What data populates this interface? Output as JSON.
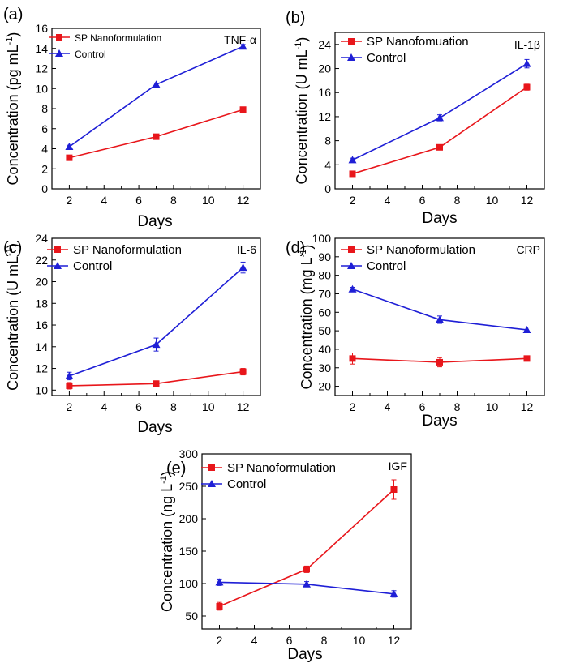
{
  "colors": {
    "sp": "#e8161b",
    "control": "#1f1fd6"
  },
  "chart_data": [
    {
      "panel_label": "(a)",
      "type": "line",
      "tag": "TNF-α",
      "ylabel_main": "Concentration (pg mL",
      "ylabel_sup": "-1",
      "ylabel_close": ")",
      "xlabel": "Days",
      "x": [
        2,
        7,
        12
      ],
      "xlim": [
        1,
        13
      ],
      "xticks": [
        "2",
        "4",
        "6",
        "8",
        "10",
        "12"
      ],
      "ylim": [
        0,
        16
      ],
      "yticks": [
        "0",
        "2",
        "4",
        "6",
        "8",
        "10",
        "12",
        "14",
        "16"
      ],
      "legend": [
        "SP Nanoformulation",
        "Control"
      ],
      "series": [
        {
          "name": "SP Nanoformulation",
          "values": [
            3.1,
            5.2,
            7.9
          ],
          "errors": [
            0.15,
            0.15,
            0.15
          ]
        },
        {
          "name": "Control",
          "values": [
            4.2,
            10.4,
            14.2
          ],
          "errors": [
            0.15,
            0.15,
            0.2
          ]
        }
      ]
    },
    {
      "panel_label": "(b)",
      "type": "line",
      "tag": "IL-1β",
      "ylabel_main": "Concentration (U mL",
      "ylabel_sup": "-1",
      "ylabel_close": ")",
      "xlabel": "Days",
      "x": [
        2,
        7,
        12
      ],
      "xlim": [
        1,
        13
      ],
      "xticks": [
        "2",
        "4",
        "6",
        "8",
        "10",
        "12"
      ],
      "ylim": [
        0,
        26
      ],
      "yticks": [
        "0",
        "4",
        "8",
        "12",
        "16",
        "20",
        "24"
      ],
      "legend": [
        "SP Nanofomuation",
        "Control"
      ],
      "series": [
        {
          "name": "SP Nanofomuation",
          "values": [
            2.5,
            6.9,
            16.9
          ],
          "errors": [
            0.4,
            0.3,
            0.5
          ]
        },
        {
          "name": "Control",
          "values": [
            4.8,
            11.8,
            20.8
          ],
          "errors": [
            0.3,
            0.5,
            0.7
          ]
        }
      ]
    },
    {
      "panel_label": "(c)",
      "type": "line",
      "tag": "IL-6",
      "ylabel_main": "Concentration (U mL",
      "ylabel_sup": "-1",
      "ylabel_close": ")",
      "xlabel": "Days",
      "x": [
        2,
        7,
        12
      ],
      "xlim": [
        1,
        13
      ],
      "xticks": [
        "2",
        "4",
        "6",
        "8",
        "10",
        "12"
      ],
      "ylim": [
        9.5,
        24
      ],
      "yticks": [
        "10",
        "12",
        "14",
        "16",
        "18",
        "20",
        "22",
        "24"
      ],
      "legend": [
        "SP Nanoformulation",
        "Control"
      ],
      "series": [
        {
          "name": "SP Nanoformulation",
          "values": [
            10.4,
            10.6,
            11.7
          ],
          "errors": [
            0.3,
            0.25,
            0.3
          ]
        },
        {
          "name": "Control",
          "values": [
            11.3,
            14.2,
            21.3
          ],
          "errors": [
            0.35,
            0.6,
            0.5
          ]
        }
      ]
    },
    {
      "panel_label": "(d)",
      "type": "line",
      "tag": "CRP",
      "ylabel_main": "Concentration (mg L",
      "ylabel_sup": "-1",
      "ylabel_close": ")",
      "xlabel": "Days",
      "x": [
        2,
        7,
        12
      ],
      "xlim": [
        1,
        13
      ],
      "xticks": [
        "2",
        "4",
        "6",
        "8",
        "10",
        "12"
      ],
      "ylim": [
        15,
        100
      ],
      "yticks": [
        "20",
        "30",
        "40",
        "50",
        "60",
        "70",
        "80",
        "90",
        "100"
      ],
      "legend": [
        "SP Nanoformulation",
        "Control"
      ],
      "series": [
        {
          "name": "SP Nanoformulation",
          "values": [
            35,
            33,
            35
          ],
          "errors": [
            3,
            2.5,
            1
          ]
        },
        {
          "name": "Control",
          "values": [
            72.5,
            56,
            50.5
          ],
          "errors": [
            1,
            2,
            1.5
          ]
        }
      ]
    },
    {
      "panel_label": "(e)",
      "type": "line",
      "tag": "IGF",
      "ylabel_main": "Concentration (ng L",
      "ylabel_sup": "-1",
      "ylabel_close": ")",
      "xlabel": "Days",
      "x": [
        2,
        7,
        12
      ],
      "xlim": [
        1,
        13
      ],
      "xticks": [
        "2",
        "4",
        "6",
        "8",
        "10",
        "12"
      ],
      "ylim": [
        30,
        300
      ],
      "yticks": [
        "50",
        "100",
        "150",
        "200",
        "250",
        "300"
      ],
      "legend": [
        "SP Nanoformulation",
        "Control"
      ],
      "series": [
        {
          "name": "SP Nanoformulation",
          "values": [
            65,
            122,
            245
          ],
          "errors": [
            6,
            5,
            15
          ]
        },
        {
          "name": "Control",
          "values": [
            102,
            99,
            84
          ],
          "errors": [
            5,
            4,
            5
          ]
        }
      ]
    }
  ]
}
